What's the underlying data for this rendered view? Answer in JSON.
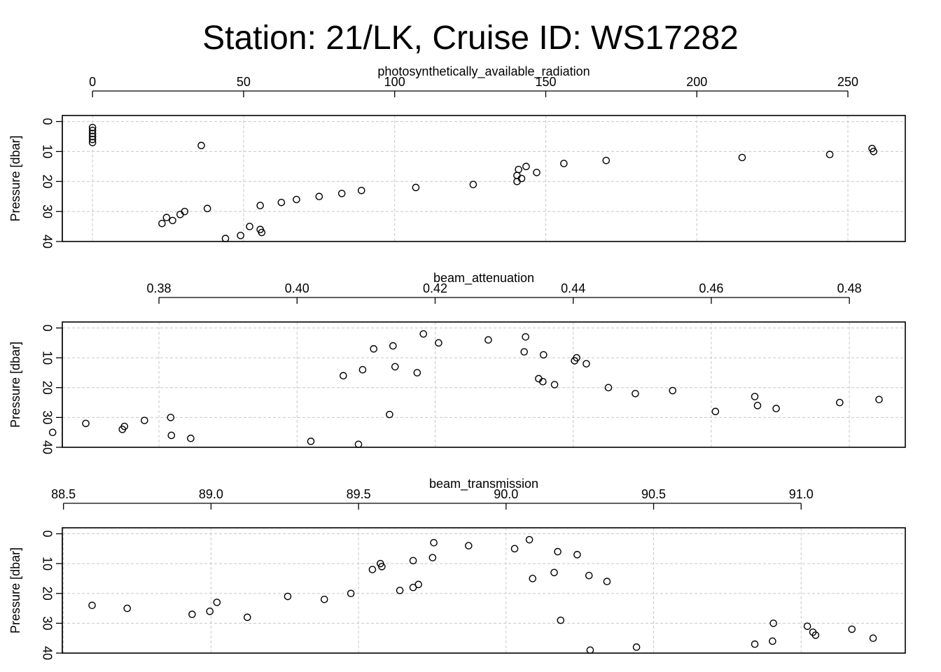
{
  "title": "Station: 21/LK, Cruise ID: WS17282",
  "chart_data": [
    {
      "type": "scatter",
      "title": "",
      "xlabel": "photosynthetically_available_radiation",
      "ylabel": "Pressure [dbar]",
      "x_ticks": [
        0,
        50,
        100,
        150,
        200,
        250
      ],
      "x_tick_labels": [
        "0",
        "50",
        "100",
        "150",
        "200",
        "250"
      ],
      "y_ticks": [
        0,
        10,
        20,
        30,
        40
      ],
      "y_tick_labels": [
        "0",
        "10",
        "20",
        "30",
        "40"
      ],
      "xlim": [
        -10,
        269
      ],
      "ylim": [
        40,
        -2
      ],
      "y_reversed": true,
      "grid": true,
      "points": [
        {
          "x": 0,
          "y": 2
        },
        {
          "x": 0,
          "y": 3
        },
        {
          "x": 0,
          "y": 4
        },
        {
          "x": 0,
          "y": 5
        },
        {
          "x": 0,
          "y": 6
        },
        {
          "x": 0,
          "y": 7
        },
        {
          "x": 36,
          "y": 8
        },
        {
          "x": 258,
          "y": 9
        },
        {
          "x": 258.5,
          "y": 10
        },
        {
          "x": 244,
          "y": 11
        },
        {
          "x": 215,
          "y": 12
        },
        {
          "x": 170,
          "y": 13
        },
        {
          "x": 156,
          "y": 14
        },
        {
          "x": 143.5,
          "y": 15
        },
        {
          "x": 141,
          "y": 16
        },
        {
          "x": 147,
          "y": 17
        },
        {
          "x": 140.5,
          "y": 18
        },
        {
          "x": 142,
          "y": 19
        },
        {
          "x": 140.5,
          "y": 20
        },
        {
          "x": 126,
          "y": 21
        },
        {
          "x": 107,
          "y": 22
        },
        {
          "x": 89,
          "y": 23
        },
        {
          "x": 82.5,
          "y": 24
        },
        {
          "x": 75,
          "y": 25
        },
        {
          "x": 67.5,
          "y": 26
        },
        {
          "x": 62.5,
          "y": 27
        },
        {
          "x": 55.5,
          "y": 28
        },
        {
          "x": 38,
          "y": 29
        },
        {
          "x": 30.5,
          "y": 30
        },
        {
          "x": 29,
          "y": 31
        },
        {
          "x": 24.5,
          "y": 32
        },
        {
          "x": 26.5,
          "y": 33
        },
        {
          "x": 23,
          "y": 34
        },
        {
          "x": 52,
          "y": 35
        },
        {
          "x": 55.5,
          "y": 36
        },
        {
          "x": 56,
          "y": 37
        },
        {
          "x": 49,
          "y": 38
        },
        {
          "x": 44,
          "y": 39
        }
      ]
    },
    {
      "type": "scatter",
      "title": "",
      "xlabel": "beam_attenuation",
      "ylabel": "Pressure [dbar]",
      "x_ticks": [
        0.38,
        0.4,
        0.42,
        0.44,
        0.46,
        0.48
      ],
      "x_tick_labels": [
        "0.38",
        "0.40",
        "0.42",
        "0.44",
        "0.46",
        "0.48"
      ],
      "y_ticks": [
        0,
        10,
        20,
        30,
        40
      ],
      "y_tick_labels": [
        "0",
        "10",
        "20",
        "30",
        "40"
      ],
      "xlim": [
        0.366,
        0.4881
      ],
      "ylim": [
        40,
        -2
      ],
      "y_reversed": true,
      "grid": true,
      "points": [
        {
          "x": 0.4183,
          "y": 2
        },
        {
          "x": 0.4331,
          "y": 3
        },
        {
          "x": 0.4277,
          "y": 4
        },
        {
          "x": 0.4205,
          "y": 5
        },
        {
          "x": 0.4139,
          "y": 6
        },
        {
          "x": 0.4111,
          "y": 7
        },
        {
          "x": 0.4329,
          "y": 8
        },
        {
          "x": 0.4357,
          "y": 9
        },
        {
          "x": 0.4405,
          "y": 10
        },
        {
          "x": 0.4402,
          "y": 11
        },
        {
          "x": 0.4419,
          "y": 12
        },
        {
          "x": 0.4142,
          "y": 13
        },
        {
          "x": 0.4095,
          "y": 14
        },
        {
          "x": 0.4174,
          "y": 15
        },
        {
          "x": 0.4067,
          "y": 16
        },
        {
          "x": 0.435,
          "y": 17
        },
        {
          "x": 0.4356,
          "y": 18
        },
        {
          "x": 0.4373,
          "y": 19
        },
        {
          "x": 0.4451,
          "y": 20
        },
        {
          "x": 0.4544,
          "y": 21
        },
        {
          "x": 0.449,
          "y": 22
        },
        {
          "x": 0.4663,
          "y": 23
        },
        {
          "x": 0.4843,
          "y": 24
        },
        {
          "x": 0.4786,
          "y": 25
        },
        {
          "x": 0.4667,
          "y": 26
        },
        {
          "x": 0.4694,
          "y": 27
        },
        {
          "x": 0.4606,
          "y": 28
        },
        {
          "x": 0.4134,
          "y": 29
        },
        {
          "x": 0.3817,
          "y": 30
        },
        {
          "x": 0.3779,
          "y": 31
        },
        {
          "x": 0.3694,
          "y": 32
        },
        {
          "x": 0.375,
          "y": 33
        },
        {
          "x": 0.3747,
          "y": 34
        },
        {
          "x": 0.3646,
          "y": 35
        },
        {
          "x": 0.3818,
          "y": 36
        },
        {
          "x": 0.3846,
          "y": 37
        },
        {
          "x": 0.402,
          "y": 38
        },
        {
          "x": 0.4089,
          "y": 39
        }
      ]
    },
    {
      "type": "scatter",
      "title": "",
      "xlabel": "beam_transmission",
      "ylabel": "Pressure [dbar]",
      "x_ticks": [
        88.5,
        89.0,
        89.5,
        90.0,
        90.5,
        91.0
      ],
      "x_tick_labels": [
        "88.5",
        "89.0",
        "89.5",
        "90.0",
        "90.5",
        "91.0"
      ],
      "y_ticks": [
        0,
        10,
        20,
        30,
        40
      ],
      "y_tick_labels": [
        "0",
        "10",
        "20",
        "30",
        "40"
      ],
      "xlim": [
        88.496,
        91.353
      ],
      "ylim": [
        40,
        -2
      ],
      "y_reversed": true,
      "grid": true,
      "points": [
        {
          "x": 90.079,
          "y": 2
        },
        {
          "x": 89.755,
          "y": 3
        },
        {
          "x": 89.873,
          "y": 4
        },
        {
          "x": 90.029,
          "y": 5
        },
        {
          "x": 90.175,
          "y": 6
        },
        {
          "x": 90.241,
          "y": 7
        },
        {
          "x": 89.751,
          "y": 8
        },
        {
          "x": 89.685,
          "y": 9
        },
        {
          "x": 89.574,
          "y": 10
        },
        {
          "x": 89.579,
          "y": 11
        },
        {
          "x": 89.547,
          "y": 12
        },
        {
          "x": 90.163,
          "y": 13
        },
        {
          "x": 90.281,
          "y": 14
        },
        {
          "x": 90.09,
          "y": 15
        },
        {
          "x": 90.342,
          "y": 16
        },
        {
          "x": 89.703,
          "y": 17
        },
        {
          "x": 89.685,
          "y": 18
        },
        {
          "x": 89.64,
          "y": 19
        },
        {
          "x": 89.474,
          "y": 20
        },
        {
          "x": 89.26,
          "y": 21
        },
        {
          "x": 89.384,
          "y": 22
        },
        {
          "x": 89.02,
          "y": 23
        },
        {
          "x": 88.597,
          "y": 24
        },
        {
          "x": 88.716,
          "y": 25
        },
        {
          "x": 88.996,
          "y": 26
        },
        {
          "x": 88.936,
          "y": 27
        },
        {
          "x": 89.123,
          "y": 28
        },
        {
          "x": 90.185,
          "y": 29
        },
        {
          "x": 90.906,
          "y": 30
        },
        {
          "x": 91.021,
          "y": 31
        },
        {
          "x": 91.172,
          "y": 32
        },
        {
          "x": 91.04,
          "y": 33
        },
        {
          "x": 91.049,
          "y": 34
        },
        {
          "x": 91.244,
          "y": 35
        },
        {
          "x": 90.903,
          "y": 36
        },
        {
          "x": 90.843,
          "y": 37
        },
        {
          "x": 90.442,
          "y": 38
        },
        {
          "x": 90.285,
          "y": 39
        }
      ]
    }
  ]
}
